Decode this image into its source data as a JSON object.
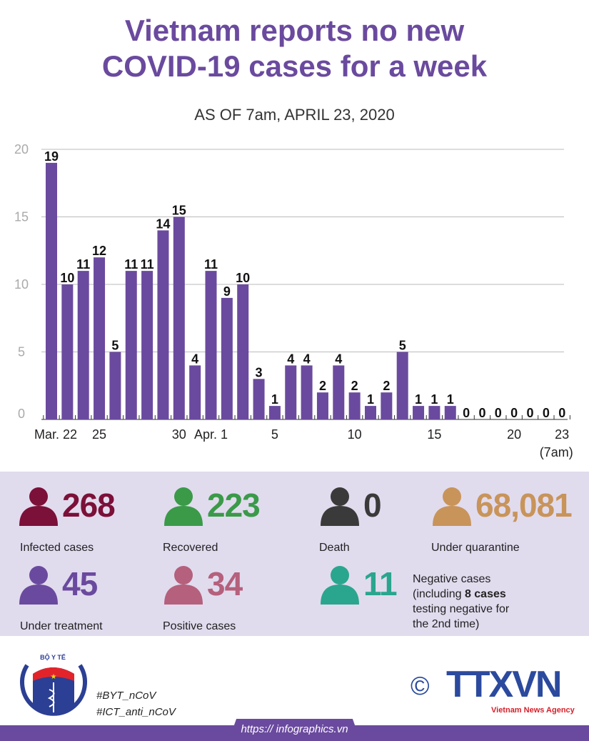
{
  "header": {
    "title_line1": "Vietnam reports no new",
    "title_line2": "COVID-19 cases for a week",
    "subtitle": "AS OF 7am, APRIL 23, 2020"
  },
  "chart_data": {
    "type": "bar",
    "title": "Vietnam reports no new COVID-19 cases for a week",
    "subtitle": "AS OF 7am, APRIL 23, 2020",
    "categories": [
      "Mar. 22",
      "23",
      "24",
      "25",
      "26",
      "27",
      "28",
      "29",
      "30",
      "31",
      "Apr. 1",
      "2",
      "3",
      "4",
      "5",
      "6",
      "7",
      "8",
      "9",
      "10",
      "11",
      "12",
      "13",
      "14",
      "15",
      "16",
      "17",
      "18",
      "19",
      "20",
      "21",
      "22",
      "23 (7am)"
    ],
    "values": [
      19,
      10,
      11,
      12,
      5,
      11,
      11,
      14,
      15,
      4,
      11,
      9,
      10,
      3,
      1,
      4,
      4,
      2,
      4,
      2,
      1,
      2,
      5,
      1,
      1,
      1,
      0,
      0,
      0,
      0,
      0,
      0,
      0
    ],
    "x_tick_labels": [
      {
        "index": 0,
        "label": "Mar. 22"
      },
      {
        "index": 3,
        "label": "25"
      },
      {
        "index": 8,
        "label": "30"
      },
      {
        "index": 10,
        "label": "Apr. 1"
      },
      {
        "index": 14,
        "label": "5"
      },
      {
        "index": 19,
        "label": "10"
      },
      {
        "index": 24,
        "label": "15"
      },
      {
        "index": 29,
        "label": "20"
      },
      {
        "index": 32,
        "label": "23",
        "sub": "(7am)"
      }
    ],
    "y_ticks": [
      0,
      5,
      10,
      15,
      20
    ],
    "ylim": [
      0,
      20
    ],
    "grid": true,
    "bar_color": "#6a4a9e",
    "data_labels": true
  },
  "stats": [
    {
      "value": "268",
      "label": "Infected cases",
      "color": "#7b1038"
    },
    {
      "value": "223",
      "label": "Recovered",
      "color": "#3a9a48"
    },
    {
      "value": "0",
      "label": "Death",
      "color": "#3a3a3a"
    },
    {
      "value": "68,081",
      "label": "Under quarantine",
      "color": "#c8945a"
    },
    {
      "value": "45",
      "label": "Under treatment",
      "color": "#6a4a9e"
    },
    {
      "value": "34",
      "label": "Positive cases",
      "color": "#b5607c"
    },
    {
      "value": "11",
      "label": "Negative cases",
      "color": "#2aa68e"
    }
  ],
  "negative_note": {
    "l1": "Negative cases",
    "l2a": "(including ",
    "l2b": "8 cases",
    "l3": "testing negative for",
    "l4": "the 2nd time)"
  },
  "footer": {
    "hashtag1": "#BYT_nCoV",
    "hashtag2": "#ICT_anti_nCoV",
    "url": "https:// infographics.vn",
    "ministry_logo": "BỘ Y TẾ MINISTRY OF HEALTH",
    "agency_logo": "TTXVN",
    "agency_name": "Vietnam News Agency",
    "copyright": "©"
  }
}
